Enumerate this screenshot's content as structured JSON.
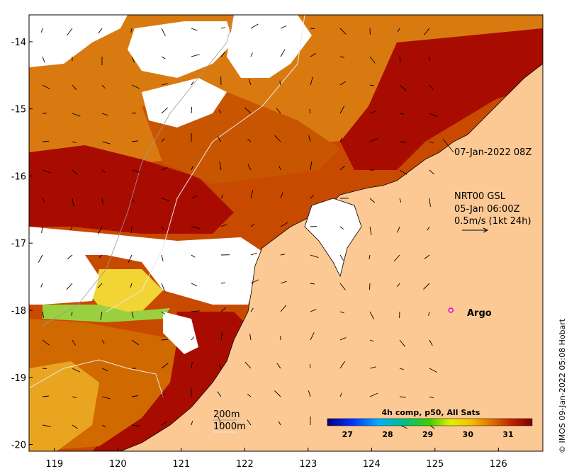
{
  "map": {
    "lon_range": [
      118.6,
      126.7
    ],
    "lat_range": [
      -20.1,
      -13.6
    ],
    "x_ticks": [
      119,
      120,
      121,
      122,
      123,
      124,
      125,
      126
    ],
    "y_ticks": [
      -14,
      -15,
      -16,
      -17,
      -18,
      -19,
      -20
    ],
    "x_tick_labels": [
      "119",
      "120",
      "121",
      "122",
      "123",
      "124",
      "125",
      "126"
    ],
    "y_tick_labels": [
      "-14",
      "-15",
      "-16",
      "-17",
      "-18",
      "-19",
      "-20"
    ],
    "land_color": "#fcc994",
    "cloud_color": "#ffffff",
    "sst_colors": {
      "warm": "#a80c00",
      "mid": "#d36b00",
      "cool": "#e8a21a",
      "cooler": "#f2d534"
    }
  },
  "annotations": {
    "composite_time": "07-Jan-2022 08Z",
    "current_source": "NRT00 GSL",
    "current_time": "05-Jan 06:00Z",
    "current_scale": "0.5m/s (1kt 24h)",
    "argo_label": "Argo",
    "depth_200": "200m",
    "depth_1000": "1000m",
    "credit": "© IMOS 09-Jan-2022 05:08 Hobart"
  },
  "argo": {
    "lon": 125.25,
    "lat": -18.0,
    "color": "#e000e0"
  },
  "colorbar": {
    "title": "4h comp, p50, All Sats",
    "min": 26.5,
    "max": 31.6,
    "ticks": [
      27,
      28,
      29,
      30,
      31
    ],
    "tick_labels": [
      "27",
      "28",
      "29",
      "30",
      "31"
    ]
  }
}
